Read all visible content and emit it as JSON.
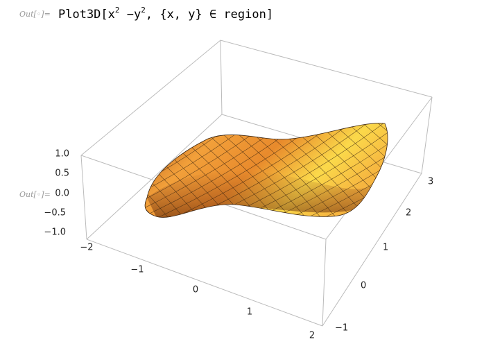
{
  "output_label": "Out[◦]=",
  "input": {
    "head": "Plot3D[x",
    "sup1": "2",
    "mid": " −y",
    "sup2": "2",
    "tail": ", {x, y} ∈ region]"
  },
  "plot": {
    "output_label": "Out[◦]=",
    "z_ticks": [
      "1.0",
      "0.5",
      "0.0",
      "−0.5",
      "−1.0"
    ],
    "x_ticks": [
      "−2",
      "−1",
      "0",
      "1",
      "2"
    ],
    "y_ticks": [
      "−1",
      "0",
      "1",
      "2",
      "3"
    ]
  }
}
